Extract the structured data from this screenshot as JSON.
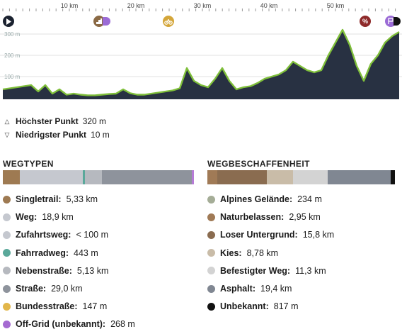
{
  "ruler": {
    "ticks": [
      "10 km",
      "20 km",
      "30 km",
      "40 km",
      "50 km"
    ]
  },
  "markers": {
    "start_icon": "play-icon",
    "poi": [
      {
        "name": "hiking-icon",
        "color": "#8b6a45"
      },
      {
        "name": "bike-icon",
        "color": "#d4a63a"
      },
      {
        "name": "percent-icon",
        "color": "#8e2a2a"
      },
      {
        "name": "finish-icon",
        "color": "#9b6bd6"
      }
    ]
  },
  "profile": {
    "y_labels": [
      "300 m",
      "200 m",
      "100 m"
    ],
    "elevation_m": [
      40,
      45,
      50,
      55,
      60,
      30,
      60,
      20,
      40,
      15,
      20,
      15,
      12,
      12,
      15,
      18,
      20,
      40,
      22,
      15,
      15,
      20,
      25,
      30,
      35,
      45,
      140,
      80,
      60,
      50,
      90,
      140,
      80,
      40,
      50,
      55,
      70,
      90,
      100,
      110,
      130,
      170,
      150,
      130,
      120,
      130,
      200,
      260,
      320,
      250,
      150,
      80,
      160,
      200,
      260,
      290,
      310
    ]
  },
  "summary": {
    "highest_label": "Höchster Punkt",
    "highest_value": "320 m",
    "lowest_label": "Niedrigster Punkt",
    "lowest_value": "10 m"
  },
  "wegtypen": {
    "title": "WEGTYPEN",
    "segments": [
      {
        "color": "#9e7a52",
        "fraction": 0.09
      },
      {
        "color": "#c5c8cf",
        "fraction": 0.33
      },
      {
        "color": "#5aa89a",
        "fraction": 0.01
      },
      {
        "color": "#b6b9bf",
        "fraction": 0.09
      },
      {
        "color": "#8e939c",
        "fraction": 0.47
      },
      {
        "color": "#b67bd6",
        "fraction": 0.01
      }
    ],
    "items": [
      {
        "label": "Singletrail:",
        "value": "5,33 km",
        "color": "#9e7a52"
      },
      {
        "label": "Weg:",
        "value": "18,9 km",
        "color": "#c5c8cf"
      },
      {
        "label": "Zufahrtsweg:",
        "value": "< 100 m",
        "color": "#c5c8cf"
      },
      {
        "label": "Fahrradweg:",
        "value": "443 m",
        "color": "#5aa89a"
      },
      {
        "label": "Nebenstraße:",
        "value": "5,13 km",
        "color": "#b6b9bf"
      },
      {
        "label": "Straße:",
        "value": "29,0 km",
        "color": "#8e939c"
      },
      {
        "label": "Bundesstraße:",
        "value": "147 m",
        "color": "#e2b64a"
      },
      {
        "label": "Off-Grid (unbekannt):",
        "value": "268 m",
        "color": "#a56ad1"
      }
    ]
  },
  "wegbeschaffenheit": {
    "title": "WEGBESCHAFFENHEIT",
    "segments": [
      {
        "color": "#a07a56",
        "fraction": 0.05
      },
      {
        "color": "#8a6c50",
        "fraction": 0.26
      },
      {
        "color": "#c9bca8",
        "fraction": 0.14
      },
      {
        "color": "#d3d3d3",
        "fraction": 0.18
      },
      {
        "color": "#808792",
        "fraction": 0.33
      },
      {
        "color": "#111111",
        "fraction": 0.02
      }
    ],
    "items": [
      {
        "label": "Alpines Gelände:",
        "value": "234 m",
        "color": "#a5ad97"
      },
      {
        "label": "Naturbelassen:",
        "value": "2,95 km",
        "color": "#a07a56"
      },
      {
        "label": "Loser Untergrund:",
        "value": "15,8 km",
        "color": "#8a6c50"
      },
      {
        "label": "Kies:",
        "value": "8,78 km",
        "color": "#c9bca8"
      },
      {
        "label": "Befestigter Weg:",
        "value": "11,3 km",
        "color": "#d3d3d3"
      },
      {
        "label": "Asphalt:",
        "value": "19,4 km",
        "color": "#808792"
      },
      {
        "label": "Unbekannt:",
        "value": "817 m",
        "color": "#111111"
      }
    ]
  }
}
